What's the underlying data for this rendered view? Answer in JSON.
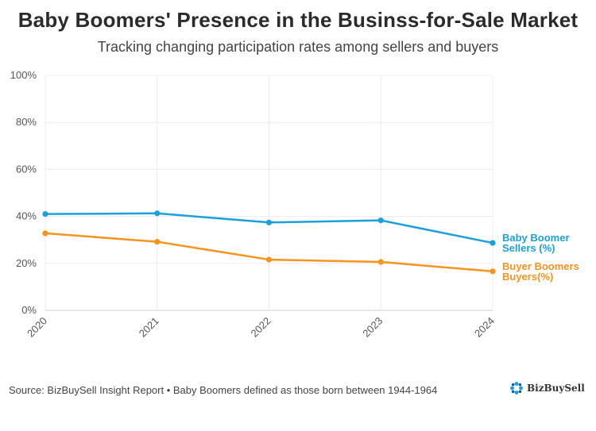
{
  "chart_data": {
    "type": "line",
    "title": "Baby Boomers' Presence in the Businss-for-Sale Market",
    "subtitle": "Tracking changing participation rates among sellers and buyers",
    "x": [
      "2020",
      "2021",
      "2022",
      "2023",
      "2024"
    ],
    "ylim": [
      0,
      100
    ],
    "yticks": [
      0,
      20,
      40,
      60,
      80,
      100
    ],
    "ytick_labels": [
      "0%",
      "20%",
      "40%",
      "60%",
      "80%",
      "100%"
    ],
    "grid": true,
    "series": [
      {
        "name_line1": "Baby Boomer",
        "name_line2": "Sellers (%)",
        "color": "#1ba0dc",
        "values": [
          41,
          41.3,
          37.4,
          38.3,
          28.7
        ]
      },
      {
        "name_line1": "Buyer Boomers",
        "name_line2": "Buyers(%)",
        "color": "#f7931e",
        "values": [
          32.8,
          29.2,
          21.6,
          20.6,
          16.6
        ]
      }
    ]
  },
  "footer": {
    "source": "Source: BizBuySell Insight Report • Baby Boomers defined as those born between 1944-1964",
    "logo_text": "BizBuySell",
    "logo_colors": [
      "#1ba0dc",
      "#0b5d91"
    ]
  }
}
